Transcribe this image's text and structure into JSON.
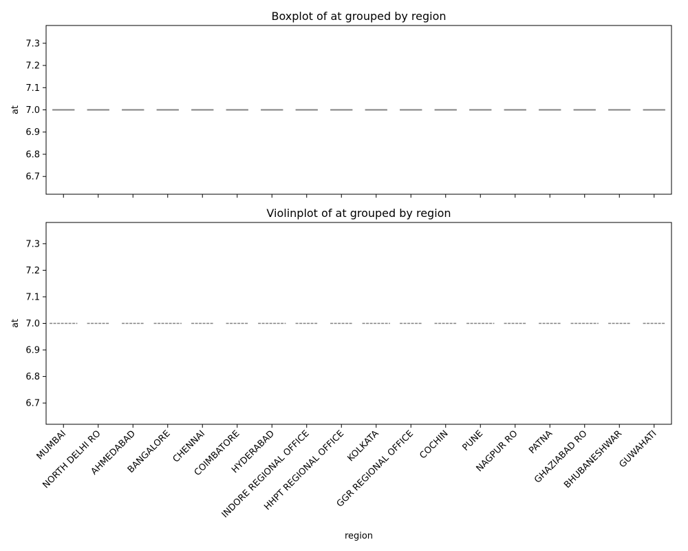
{
  "chart_data": [
    {
      "type": "boxplot",
      "title": "Boxplot of at grouped by region",
      "xlabel": "",
      "ylabel": "at",
      "ylim": [
        6.62,
        7.38
      ],
      "yticks": [
        "6.7",
        "6.8",
        "6.9",
        "7.0",
        "7.1",
        "7.2",
        "7.3"
      ],
      "categories": [
        "MUMBAI",
        "NORTH DELHI RO",
        "AHMEDABAD",
        "BANGALORE",
        "CHENNAI",
        "COIMBATORE",
        "HYDERABAD",
        "INDORE REGIONAL OFFICE",
        "HHPT REGIONAL OFFICE",
        "KOLKATA",
        "GGR REGIONAL OFFICE",
        "COCHIN",
        "PUNE",
        "NAGPUR RO",
        "PATNA",
        "GHAZIABAD RO",
        "BHUBANESHWAR",
        "GUWAHATI"
      ],
      "values": [
        7.0,
        7.0,
        7.0,
        7.0,
        7.0,
        7.0,
        7.0,
        7.0,
        7.0,
        7.0,
        7.0,
        7.0,
        7.0,
        7.0,
        7.0,
        7.0,
        7.0,
        7.0
      ],
      "show_xtick_labels": false
    },
    {
      "type": "violin",
      "title": "Violinplot of at grouped by region",
      "xlabel": "region",
      "ylabel": "at",
      "ylim": [
        6.62,
        7.38
      ],
      "yticks": [
        "6.7",
        "6.8",
        "6.9",
        "7.0",
        "7.1",
        "7.2",
        "7.3"
      ],
      "categories": [
        "MUMBAI",
        "NORTH DELHI RO",
        "AHMEDABAD",
        "BANGALORE",
        "CHENNAI",
        "COIMBATORE",
        "HYDERABAD",
        "INDORE REGIONAL OFFICE",
        "HHPT REGIONAL OFFICE",
        "KOLKATA",
        "GGR REGIONAL OFFICE",
        "COCHIN",
        "PUNE",
        "NAGPUR RO",
        "PATNA",
        "GHAZIABAD RO",
        "BHUBANESHWAR",
        "GUWAHATI"
      ],
      "values": [
        7.0,
        7.0,
        7.0,
        7.0,
        7.0,
        7.0,
        7.0,
        7.0,
        7.0,
        7.0,
        7.0,
        7.0,
        7.0,
        7.0,
        7.0,
        7.0,
        7.0,
        7.0
      ],
      "show_xtick_labels": true
    }
  ],
  "colors": {
    "axes": "#000000",
    "median_line": "#808080",
    "background": "#ffffff"
  }
}
